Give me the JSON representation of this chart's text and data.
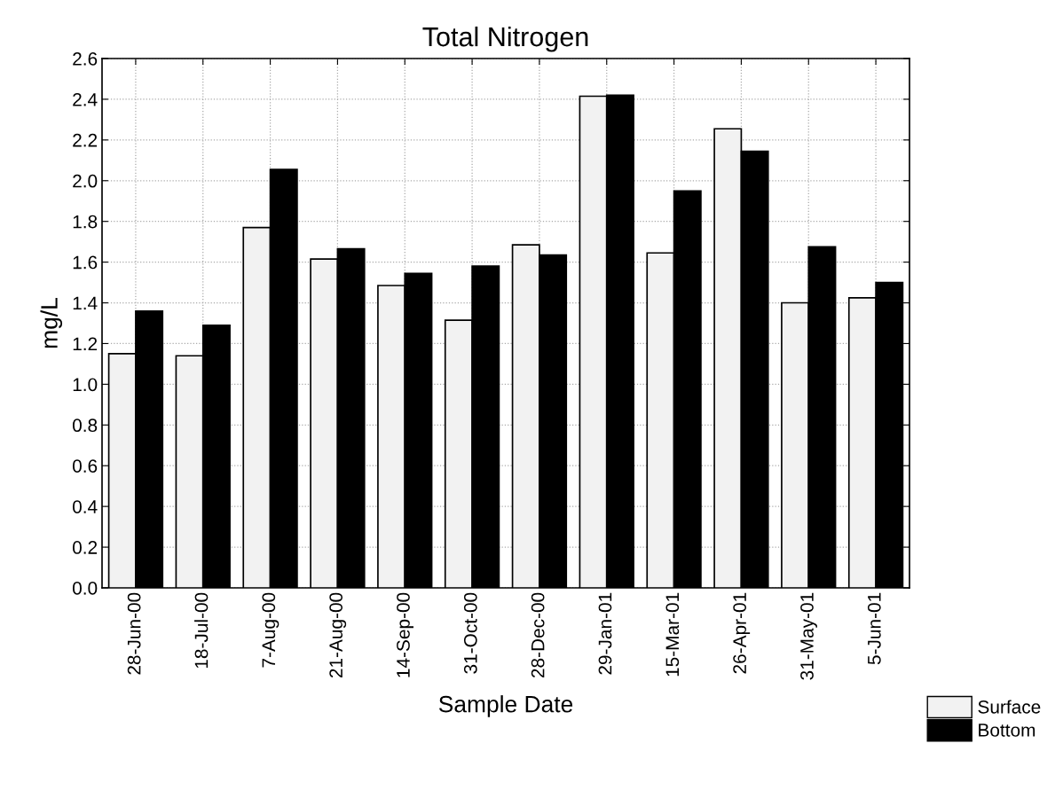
{
  "chart_data": {
    "type": "bar",
    "title": "Total Nitrogen",
    "xlabel": "Sample Date",
    "ylabel": "mg/L",
    "categories": [
      "28-Jun-00",
      "18-Jul-00",
      "7-Aug-00",
      "21-Aug-00",
      "14-Sep-00",
      "31-Oct-00",
      "28-Dec-00",
      "29-Jan-01",
      "15-Mar-01",
      "26-Apr-01",
      "31-May-01",
      "5-Jun-01"
    ],
    "series": [
      {
        "name": "Surface",
        "color": "#f2f2f2",
        "values": [
          1.15,
          1.14,
          1.77,
          1.615,
          1.485,
          1.315,
          1.685,
          2.415,
          1.645,
          2.255,
          1.4,
          1.425
        ]
      },
      {
        "name": "Bottom",
        "color": "#000000",
        "values": [
          1.36,
          1.29,
          2.055,
          1.665,
          1.545,
          1.58,
          1.635,
          2.42,
          1.95,
          2.145,
          1.675,
          1.5
        ]
      }
    ],
    "ylim": [
      0,
      2.6
    ],
    "yticks": [
      {
        "value": 0,
        "label": "0.0"
      },
      0.2,
      0.4,
      0.6,
      0.8,
      {
        "value": 1,
        "label": "1.0"
      },
      1.2,
      1.4,
      1.6,
      1.8,
      {
        "value": 2,
        "label": "2.0"
      },
      2.2,
      2.4,
      2.6
    ],
    "grid": true,
    "legend": "bottom right"
  }
}
